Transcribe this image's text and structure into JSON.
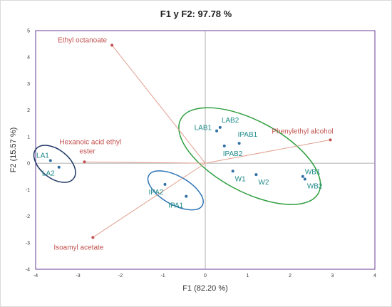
{
  "chart_data": {
    "type": "scatter",
    "title": "F1 y F2: 97.78 %",
    "xlabel": "F1 (82.20 %)",
    "ylabel": "F2 (15.57 %)",
    "xlim": [
      -4,
      4
    ],
    "ylim": [
      -4,
      5
    ],
    "xticks": [
      "-4",
      "-3",
      "-2",
      "-1",
      "0",
      "1",
      "2",
      "3",
      "4"
    ],
    "yticks": [
      "-4",
      "-3",
      "-2",
      "-1",
      "0",
      "1",
      "2",
      "3",
      "4",
      "5"
    ],
    "grid": false,
    "variables": {
      "color": "#c0504d",
      "line_color": "#e0a090",
      "points": [
        {
          "label": "Ethyl octanoate",
          "x": -2.2,
          "y": 4.45
        },
        {
          "label": "Phenylethyl alcohol",
          "x": 2.95,
          "y": 0.88
        },
        {
          "label": "Hexanoic acid ethyl ester",
          "label_lines": [
            "Hexanoic acid ethyl",
            "ester"
          ],
          "x": -2.85,
          "y": 0.05
        },
        {
          "label": "Isoamyl acetate",
          "x": -2.65,
          "y": -2.8
        }
      ]
    },
    "observations": {
      "color": "#2f6fa5",
      "label_color": "#1f8a8a",
      "points": [
        {
          "label": "LA1",
          "x": -3.65,
          "y": 0.1
        },
        {
          "label": "LA2",
          "x": -3.45,
          "y": -0.15
        },
        {
          "label": "IPA2",
          "x": -0.95,
          "y": -0.8
        },
        {
          "label": "IPA1",
          "x": -0.45,
          "y": -1.25
        },
        {
          "label": "LAB1",
          "x": 0.27,
          "y": 1.22
        },
        {
          "label": "LAB2",
          "x": 0.35,
          "y": 1.35
        },
        {
          "label": "IPAB2",
          "x": 0.45,
          "y": 0.65
        },
        {
          "label": "IPAB1",
          "x": 0.8,
          "y": 0.75
        },
        {
          "label": "W1",
          "x": 0.65,
          "y": -0.3
        },
        {
          "label": "W2",
          "x": 1.2,
          "y": -0.43
        },
        {
          "label": "WB1",
          "x": 2.3,
          "y": -0.5
        },
        {
          "label": "WB2",
          "x": 2.35,
          "y": -0.6
        }
      ]
    },
    "groups": [
      {
        "members": [
          "LA1",
          "LA2"
        ],
        "color": "#1f3864"
      },
      {
        "members": [
          "IPA1",
          "IPA2"
        ],
        "color": "#2e75b6"
      },
      {
        "members": [
          "LAB1",
          "LAB2",
          "IPAB1",
          "IPAB2",
          "W1",
          "W2",
          "WB1",
          "WB2"
        ],
        "color": "#2e9e3e"
      }
    ]
  }
}
